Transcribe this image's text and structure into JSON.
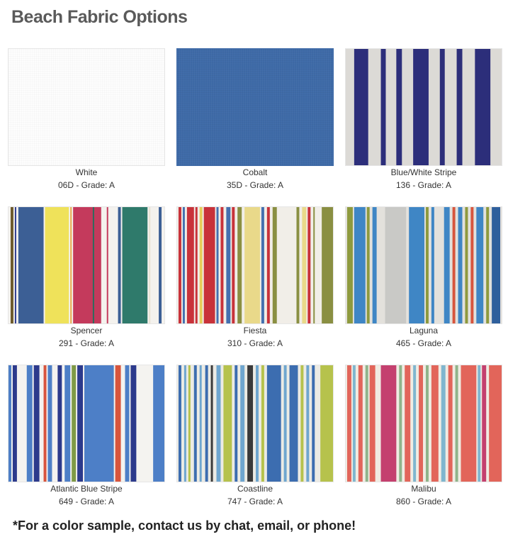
{
  "page": {
    "title": "Beach Fabric Options",
    "footer_note": "*For a color sample, contact us by chat, email, or phone!"
  },
  "fabrics": [
    {
      "name": "White",
      "code": "06D - Grade: A",
      "colors": [
        "#fdfdfd"
      ]
    },
    {
      "name": "Cobalt",
      "code": "35D - Grade: A",
      "colors": [
        "#3e6aa7"
      ]
    },
    {
      "name": "Blue/White Stripe",
      "code": "136 - Grade: A",
      "colors": [
        "#2c2e7a",
        "#dcdad6"
      ]
    },
    {
      "name": "Spencer",
      "code": "291 - Grade: A",
      "colors": [
        "#3c5f95",
        "#efe25a",
        "#c43a5c",
        "#2f7a6b",
        "#f4f2ee"
      ]
    },
    {
      "name": "Fiesta",
      "code": "310 - Grade: A",
      "colors": [
        "#c8323a",
        "#f1eee8",
        "#4470b0",
        "#8a8f42",
        "#e9d98a"
      ]
    },
    {
      "name": "Laguna",
      "code": "465 - Grade: A",
      "colors": [
        "#3f86c5",
        "#c9c9c6",
        "#8e9a3e",
        "#e3e1dc",
        "#2f5f9c"
      ]
    },
    {
      "name": "Atlantic Blue Stripe",
      "code": "649 - Grade: A",
      "colors": [
        "#2c3a8c",
        "#f4f3f0",
        "#4d7fc7",
        "#d8553d",
        "#7f9a46"
      ]
    },
    {
      "name": "Coastline",
      "code": "747 - Grade: A",
      "colors": [
        "#3c6db0",
        "#b6c24c",
        "#ecebe4",
        "#6fa6cf",
        "#3a3a3a"
      ]
    },
    {
      "name": "Malibu",
      "code": "860 - Grade: A",
      "colors": [
        "#e2655a",
        "#f0ece3",
        "#c4406f",
        "#8fb48a",
        "#7fb6cf"
      ]
    }
  ]
}
